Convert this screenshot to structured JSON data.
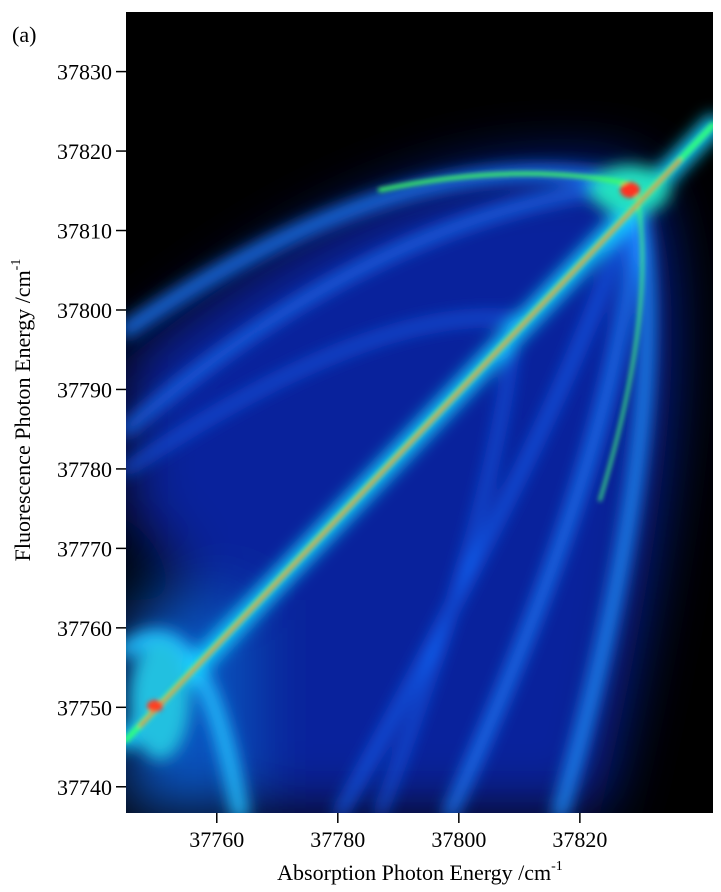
{
  "chart_data": {
    "type": "heatmap",
    "panel_label": "(a)",
    "xlabel": {
      "text": "Absorption Photon Energy /cm",
      "superscript": "-1"
    },
    "ylabel": {
      "text": "Fluorescence Photon Energy /cm",
      "superscript": "-1"
    },
    "xlim": [
      37745,
      37842
    ],
    "ylim": [
      37736.7,
      37837.5
    ],
    "xticks": [
      37760,
      37780,
      37800,
      37820
    ],
    "yticks": [
      37740,
      37750,
      37760,
      37770,
      37780,
      37790,
      37800,
      37810,
      37820,
      37830
    ]
  }
}
